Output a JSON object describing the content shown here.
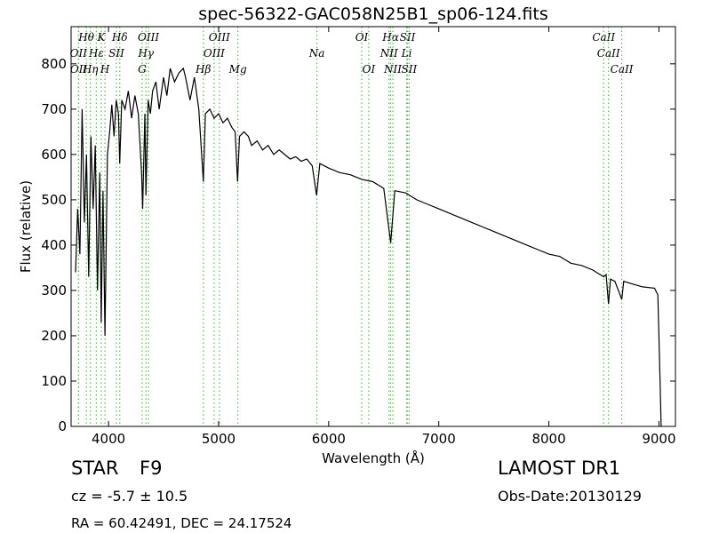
{
  "chart_data": {
    "type": "line",
    "title": "spec-56322-GAC058N25B1_sp06-124.fits",
    "x_label": "Wavelength (Å)",
    "y_label": "Flux (relative)",
    "xlim": [
      3660,
      9150
    ],
    "ylim": [
      0,
      882
    ],
    "xticks": [
      4000,
      5000,
      6000,
      7000,
      8000,
      9000
    ],
    "yticks": [
      0,
      100,
      200,
      300,
      400,
      500,
      600,
      700,
      800
    ],
    "color": "#000000",
    "line_marker_color": "#5cb85c",
    "x": [
      3700,
      3720,
      3740,
      3760,
      3780,
      3800,
      3820,
      3840,
      3860,
      3880,
      3900,
      3920,
      3934,
      3950,
      3968,
      3990,
      4010,
      4030,
      4050,
      4070,
      4090,
      4102,
      4120,
      4150,
      4180,
      4210,
      4240,
      4270,
      4300,
      4310,
      4330,
      4340,
      4360,
      4380,
      4400,
      4430,
      4460,
      4500,
      4530,
      4560,
      4600,
      4640,
      4680,
      4700,
      4740,
      4780,
      4820,
      4861,
      4880,
      4920,
      4960,
      5000,
      5040,
      5080,
      5120,
      5150,
      5172,
      5190,
      5230,
      5270,
      5300,
      5350,
      5400,
      5450,
      5500,
      5550,
      5600,
      5650,
      5700,
      5750,
      5800,
      5850,
      5890,
      5920,
      6000,
      6100,
      6200,
      6300,
      6400,
      6500,
      6563,
      6600,
      6700,
      6800,
      6900,
      7000,
      7100,
      7200,
      7300,
      7400,
      7500,
      7600,
      7700,
      7800,
      7900,
      8000,
      8100,
      8200,
      8300,
      8400,
      8498,
      8520,
      8542,
      8560,
      8600,
      8662,
      8680,
      8750,
      8850,
      8960,
      8990,
      9010,
      9020
    ],
    "values": [
      340,
      480,
      380,
      700,
      450,
      600,
      330,
      640,
      480,
      620,
      300,
      560,
      230,
      520,
      200,
      600,
      650,
      710,
      640,
      720,
      690,
      580,
      720,
      700,
      740,
      680,
      730,
      690,
      560,
      480,
      690,
      510,
      720,
      690,
      740,
      760,
      700,
      770,
      730,
      790,
      760,
      780,
      790,
      770,
      720,
      770,
      700,
      540,
      690,
      700,
      680,
      690,
      670,
      680,
      660,
      650,
      540,
      640,
      650,
      640,
      620,
      630,
      610,
      620,
      600,
      610,
      600,
      590,
      595,
      585,
      590,
      575,
      510,
      580,
      570,
      560,
      555,
      545,
      540,
      525,
      405,
      520,
      515,
      500,
      490,
      480,
      470,
      460,
      450,
      440,
      430,
      420,
      410,
      400,
      390,
      380,
      375,
      360,
      355,
      345,
      330,
      335,
      270,
      325,
      320,
      280,
      320,
      315,
      308,
      305,
      290,
      100,
      0
    ],
    "line_label_rows": [
      [
        {
          "name": "Hθ",
          "wavelength": 3798
        },
        {
          "name": "K",
          "wavelength": 3934
        },
        {
          "name": "Hδ",
          "wavelength": 4102
        },
        {
          "name": "OIII",
          "wavelength": 4363
        },
        {
          "name": "OIII",
          "wavelength": 5007
        },
        {
          "name": "OI",
          "wavelength": 6300
        },
        {
          "name": "Hα",
          "wavelength": 6563
        },
        {
          "name": "SII",
          "wavelength": 6716
        },
        {
          "name": "CaII",
          "wavelength": 8498
        }
      ],
      [
        {
          "name": "OII",
          "wavelength": 3727
        },
        {
          "name": "Hε",
          "wavelength": 3889
        },
        {
          "name": "SII",
          "wavelength": 4072
        },
        {
          "name": "Hγ",
          "wavelength": 4340
        },
        {
          "name": "OIII",
          "wavelength": 4959
        },
        {
          "name": "Na",
          "wavelength": 5893
        },
        {
          "name": "NII",
          "wavelength": 6548
        },
        {
          "name": "Li",
          "wavelength": 6708
        },
        {
          "name": "CaII",
          "wavelength": 8542
        }
      ],
      [
        {
          "name": "OII",
          "wavelength": 3729
        },
        {
          "name": "Hη",
          "wavelength": 3835
        },
        {
          "name": "H",
          "wavelength": 3968
        },
        {
          "name": "G",
          "wavelength": 4305
        },
        {
          "name": "Hβ",
          "wavelength": 4861
        },
        {
          "name": "Mg",
          "wavelength": 5175
        },
        {
          "name": "OI",
          "wavelength": 6364
        },
        {
          "name": "NII",
          "wavelength": 6583
        },
        {
          "name": "SII",
          "wavelength": 6731
        },
        {
          "name": "CaII",
          "wavelength": 8662
        }
      ]
    ],
    "class_label": "STAR",
    "subclass": "F9",
    "redshift_text": "cz = -5.7 ± 10.5",
    "coords_text": "RA = 60.42491, DEC = 24.17524",
    "survey": "LAMOST DR1",
    "obs_date": "Obs-Date:20130129"
  }
}
